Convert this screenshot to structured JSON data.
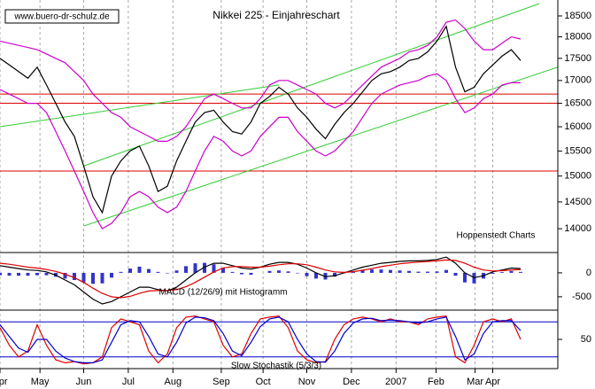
{
  "chart_data": [
    {
      "type": "line",
      "title": "Nikkei 225 - Einjahreschart",
      "source": "www.buero-dr-schulz.de",
      "credit": "Hoppenstedt Charts",
      "log_scale": true,
      "ylim": [
        13570,
        18890
      ],
      "yticks": [
        14000,
        14500,
        15000,
        15500,
        16000,
        16500,
        17000,
        17500,
        18000,
        18500
      ],
      "x": [
        0,
        1,
        2,
        3,
        4,
        5,
        6,
        7,
        8,
        9,
        10,
        11,
        12,
        13,
        14,
        15,
        16,
        17,
        18,
        19,
        20,
        21,
        22,
        23,
        24,
        25,
        26,
        27,
        28,
        29,
        30,
        31,
        32,
        33,
        34,
        35,
        36,
        37,
        38,
        39,
        40,
        41,
        42,
        43,
        44,
        45,
        46,
        47,
        48,
        49,
        50,
        51,
        52,
        53,
        54,
        55,
        56
      ],
      "series": [
        {
          "color": "#000000",
          "values": [
            17500,
            17350,
            17200,
            17050,
            17300,
            16900,
            16500,
            16100,
            15800,
            15200,
            14600,
            14300,
            15000,
            15300,
            15500,
            15600,
            15200,
            14700,
            14800,
            15300,
            15700,
            16100,
            16300,
            16350,
            16100,
            15900,
            15850,
            16100,
            16500,
            16650,
            16850,
            16700,
            16400,
            16200,
            15950,
            15750,
            16050,
            16300,
            16500,
            16750,
            17000,
            17150,
            17200,
            17300,
            17450,
            17500,
            17650,
            17900,
            18250,
            17300,
            16750,
            16850,
            17150,
            17350,
            17550,
            17700,
            17450
          ]
        },
        {
          "color": "#cc00cc",
          "values": [
            17900,
            17850,
            17800,
            17750,
            17700,
            17600,
            17500,
            17400,
            17200,
            17000,
            16700,
            16500,
            16300,
            16200,
            16000,
            15900,
            15800,
            15700,
            15700,
            15800,
            16000,
            16300,
            16600,
            16700,
            16600,
            16500,
            16400,
            16400,
            16600,
            16900,
            17000,
            17000,
            16900,
            16800,
            16700,
            16500,
            16400,
            16500,
            16700,
            16900,
            17100,
            17300,
            17400,
            17500,
            17650,
            17700,
            17800,
            18000,
            18350,
            18400,
            18200,
            17900,
            17700,
            17700,
            17850,
            18000,
            17950
          ]
        },
        {
          "color": "#cc00cc",
          "values": [
            16800,
            16700,
            16600,
            16500,
            16500,
            16300,
            15900,
            15500,
            15100,
            14700,
            14300,
            14000,
            14100,
            14300,
            14600,
            14700,
            14600,
            14400,
            14300,
            14400,
            14700,
            15100,
            15500,
            15800,
            15700,
            15500,
            15400,
            15500,
            15800,
            16000,
            16200,
            16200,
            15900,
            15700,
            15500,
            15400,
            15500,
            15700,
            15900,
            16200,
            16500,
            16700,
            16800,
            16900,
            16950,
            17000,
            17100,
            17150,
            17000,
            16600,
            16300,
            16400,
            16600,
            16700,
            16900,
            16950,
            16950
          ]
        }
      ],
      "trendlines": {
        "color": "#33cc33",
        "lines": [
          [
            [
              9,
              14050
            ],
            [
              60,
              17300
            ]
          ],
          [
            [
              9,
              15200
            ],
            [
              58,
              18800
            ]
          ],
          [
            [
              0,
              16000
            ],
            [
              30,
              16900
            ]
          ]
        ]
      },
      "hlines": {
        "color": "#dd0000",
        "values": [
          16700,
          16500,
          15100
        ]
      }
    },
    {
      "type": "macd",
      "label": "MACD (12/26/9) mit Histogramm",
      "ylim": [
        -780,
        425
      ],
      "yticks": [
        -500,
        0
      ],
      "series": [
        {
          "color": "#000000",
          "values": [
            150,
            120,
            90,
            60,
            50,
            20,
            -50,
            -150,
            -250,
            -400,
            -550,
            -650,
            -600,
            -500,
            -400,
            -300,
            -300,
            -350,
            -380,
            -300,
            -150,
            0,
            120,
            200,
            200,
            150,
            100,
            80,
            120,
            180,
            220,
            220,
            180,
            100,
            0,
            -80,
            -60,
            0,
            60,
            120,
            160,
            200,
            220,
            240,
            250,
            250,
            260,
            280,
            330,
            200,
            0,
            -100,
            -60,
            20,
            60,
            100,
            90
          ]
        },
        {
          "color": "#dd0000",
          "values": [
            200,
            180,
            150,
            120,
            100,
            70,
            30,
            -30,
            -100,
            -200,
            -320,
            -430,
            -500,
            -520,
            -490,
            -430,
            -380,
            -370,
            -370,
            -350,
            -290,
            -200,
            -90,
            20,
            100,
            130,
            130,
            120,
            120,
            140,
            170,
            190,
            190,
            170,
            120,
            60,
            20,
            10,
            25,
            55,
            90,
            130,
            160,
            190,
            210,
            225,
            235,
            250,
            270,
            260,
            200,
            120,
            60,
            40,
            45,
            60,
            70
          ]
        }
      ],
      "histogram": {
        "color": "#3333cc",
        "values": [
          -50,
          -60,
          -60,
          -60,
          -50,
          -50,
          -80,
          -120,
          -150,
          -200,
          -230,
          -220,
          -100,
          20,
          90,
          130,
          80,
          20,
          -10,
          50,
          140,
          200,
          210,
          180,
          100,
          20,
          -30,
          -40,
          0,
          40,
          50,
          30,
          -10,
          -70,
          -120,
          -140,
          -80,
          -10,
          35,
          65,
          70,
          70,
          60,
          50,
          40,
          25,
          25,
          30,
          60,
          -60,
          -200,
          -220,
          -120,
          -20,
          15,
          40,
          20
        ]
      }
    },
    {
      "type": "line",
      "label": "Slow Stochastik (5/3/3)",
      "ylim": [
        0,
        100
      ],
      "yticks": [
        50
      ],
      "xlim": [
        0,
        60
      ],
      "xticks": [
        {
          "value": 0,
          "label": "Apr"
        },
        {
          "value": 4.3,
          "label": "May"
        },
        {
          "value": 9,
          "label": "Jun"
        },
        {
          "value": 13.8,
          "label": "Jul"
        },
        {
          "value": 18.6,
          "label": "Aug"
        },
        {
          "value": 23.8,
          "label": "Sep"
        },
        {
          "value": 28.3,
          "label": "Oct"
        },
        {
          "value": 33,
          "label": "Nov"
        },
        {
          "value": 37.8,
          "label": "Dec"
        },
        {
          "value": 42.6,
          "label": "2007"
        },
        {
          "value": 46.9,
          "label": "Feb"
        },
        {
          "value": 51.1,
          "label": "Mar"
        },
        {
          "value": 53,
          "label": "Apr"
        }
      ],
      "series": [
        {
          "color": "#dd0000",
          "values": [
            70,
            40,
            20,
            30,
            75,
            40,
            15,
            10,
            12,
            8,
            10,
            20,
            70,
            85,
            80,
            75,
            30,
            10,
            25,
            70,
            88,
            90,
            85,
            80,
            40,
            20,
            25,
            60,
            85,
            88,
            90,
            70,
            30,
            15,
            10,
            12,
            50,
            75,
            85,
            88,
            85,
            80,
            85,
            80,
            80,
            75,
            85,
            88,
            90,
            20,
            10,
            40,
            80,
            85,
            80,
            85,
            50
          ]
        },
        {
          "color": "#0000cc",
          "values": [
            75,
            55,
            35,
            28,
            50,
            50,
            30,
            18,
            12,
            10,
            10,
            15,
            45,
            75,
            82,
            80,
            55,
            25,
            20,
            45,
            78,
            88,
            87,
            82,
            60,
            30,
            22,
            45,
            72,
            85,
            88,
            80,
            50,
            25,
            12,
            11,
            30,
            60,
            78,
            85,
            86,
            82,
            83,
            82,
            80,
            78,
            80,
            85,
            88,
            55,
            15,
            25,
            60,
            80,
            82,
            82,
            65
          ]
        }
      ],
      "hlines": {
        "color": "#0000cc",
        "values": [
          80,
          20
        ]
      }
    }
  ]
}
